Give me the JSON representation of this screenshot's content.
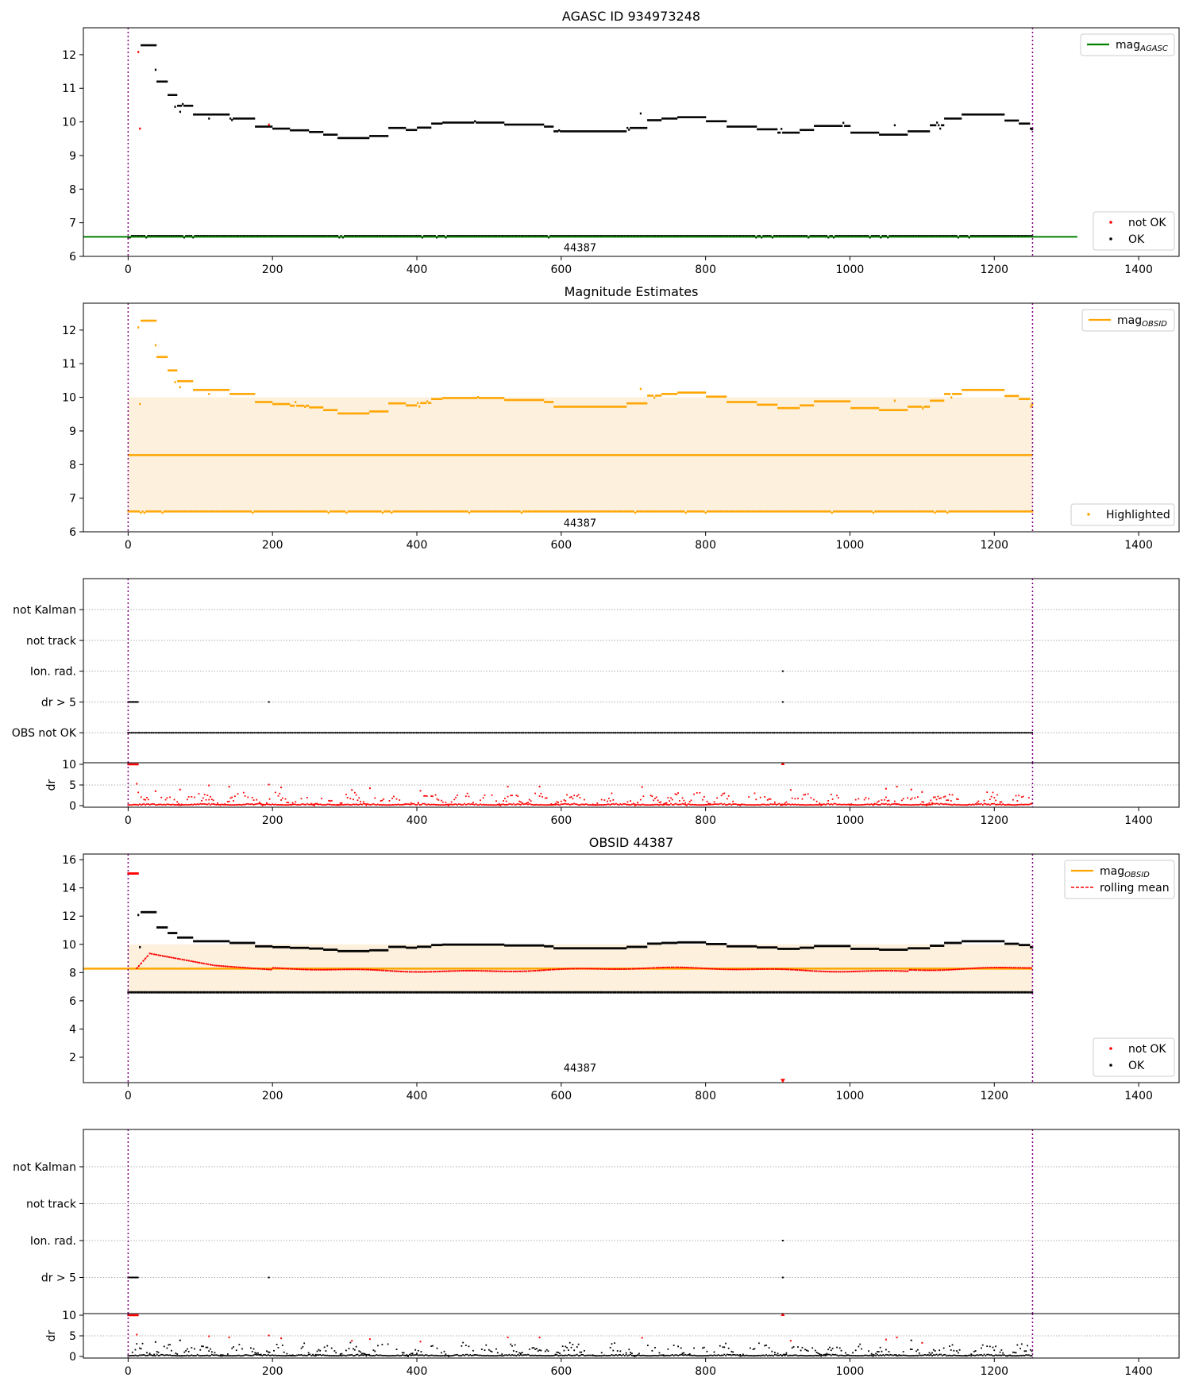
{
  "colors": {
    "ok": "#000000",
    "not_ok": "#ff0000",
    "agasc_line": "#008000",
    "obsid_line": "#ffa500",
    "band_fill": "#fdf0dc",
    "vline": "#800080",
    "rolling": "#ff0000",
    "grid": "#b0b0b0"
  },
  "chart_data": [
    {
      "type": "scatter",
      "id": "agasc",
      "title": "AGASC ID 934973248",
      "xlim": [
        -62,
        1456
      ],
      "ylim": [
        6,
        12.8
      ],
      "xticks": [
        0,
        200,
        400,
        600,
        800,
        1000,
        1200,
        1400
      ],
      "yticks": [
        6,
        7,
        8,
        9,
        10,
        11,
        12
      ],
      "vlines": [
        0,
        1253
      ],
      "obsid_label": "44387",
      "legend_top": [
        {
          "label": "mag",
          "sub": "AGASC",
          "kind": "line",
          "color": "#008000"
        }
      ],
      "legend_bottom": [
        {
          "label": "not OK",
          "color": "#ff0000"
        },
        {
          "label": "OK",
          "color": "#000000"
        }
      ],
      "hline": 6.58
    },
    {
      "type": "scatter",
      "id": "estimates",
      "title": "Magnitude Estimates",
      "xlim": [
        -62,
        1456
      ],
      "ylim": [
        6,
        12.8
      ],
      "xticks": [
        0,
        200,
        400,
        600,
        800,
        1000,
        1200,
        1400
      ],
      "yticks": [
        6,
        7,
        8,
        9,
        10,
        11,
        12
      ],
      "vlines": [
        0,
        1253
      ],
      "obsid_label": "44387",
      "band": [
        6.6,
        10.0
      ],
      "hline": 8.28,
      "legend_top": [
        {
          "label": "mag",
          "sub": "OBSID",
          "kind": "line",
          "color": "#ffa500"
        }
      ],
      "legend_bottom": [
        {
          "label": "Highlighted",
          "color": "#ffa500"
        }
      ]
    },
    {
      "type": "scatter",
      "id": "flags1",
      "categories": [
        "not Kalman",
        "not track",
        "Ion. rad.",
        "dr > 5",
        "OBS not OK"
      ],
      "xlim": [
        -62,
        1456
      ],
      "xticks": [
        0,
        200,
        400,
        600,
        800,
        1000,
        1200,
        1400
      ],
      "vlines": [
        0,
        1253
      ],
      "dr_ylabel": "dr",
      "dr_yticks": [
        0,
        5,
        10
      ],
      "dr_color": "#ff0000"
    },
    {
      "type": "line",
      "id": "obsid",
      "title": "OBSID 44387",
      "xlim": [
        -62,
        1456
      ],
      "ylim": [
        0.2,
        16.4
      ],
      "xticks": [
        0,
        200,
        400,
        600,
        800,
        1000,
        1200,
        1400
      ],
      "yticks": [
        2,
        4,
        6,
        8,
        10,
        12,
        14,
        16
      ],
      "vlines": [
        0,
        1253
      ],
      "obsid_label": "44387",
      "band": [
        6.6,
        10.0
      ],
      "hline": 8.28,
      "legend_top": [
        {
          "label": "mag",
          "sub": "OBSID",
          "kind": "line",
          "color": "#ffa500"
        },
        {
          "label": "rolling mean",
          "kind": "dash",
          "color": "#ff0000"
        }
      ],
      "legend_bottom": [
        {
          "label": "not OK",
          "color": "#ff0000"
        },
        {
          "label": "OK",
          "color": "#000000"
        }
      ]
    },
    {
      "type": "scatter",
      "id": "flags2",
      "categories": [
        "not Kalman",
        "not track",
        "Ion. rad.",
        "dr > 5"
      ],
      "xlim": [
        -62,
        1456
      ],
      "xticks": [
        0,
        200,
        400,
        600,
        800,
        1000,
        1200,
        1400
      ],
      "vlines": [
        0,
        1253
      ],
      "dr_ylabel": "dr",
      "dr_yticks": [
        0,
        5,
        10
      ],
      "dr_color": "#000000"
    }
  ]
}
